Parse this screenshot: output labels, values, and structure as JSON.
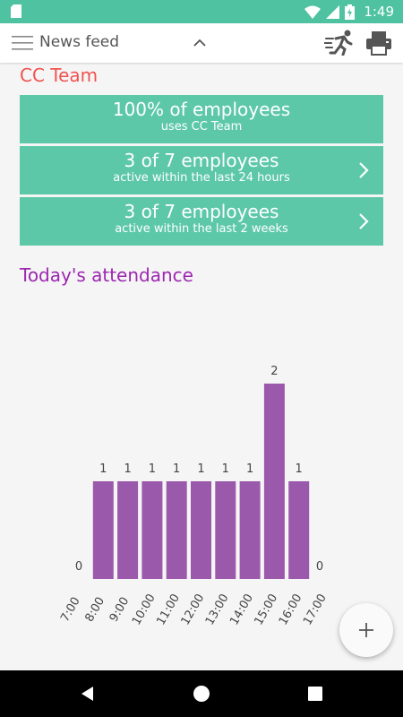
{
  "status_bar": {
    "time": "1:49",
    "battery_icon": "battery-charging-icon",
    "wifi_icon": "wifi-icon",
    "signal_icon": "signal-icon"
  },
  "app_bar": {
    "title": "News feed",
    "menu_icon": "menu-icon",
    "chevron_icon": "chevron-up-icon",
    "runner_icon": "running-person-icon",
    "print_icon": "printer-icon"
  },
  "cc_team": {
    "title": "CC Team",
    "cards": [
      {
        "big": "100% of employees",
        "small": "uses CC Team"
      },
      {
        "big": "3 of 7 employees",
        "small": "active within the last 24 hours"
      },
      {
        "big": "3 of 7 employees",
        "small": "active within the last 2 weeks"
      }
    ],
    "card_color": "#5dc8a8",
    "title_color": "#ef5350"
  },
  "attendance": {
    "title": "Today's attendance",
    "title_color": "#9c27b0"
  },
  "chart_data": {
    "type": "bar",
    "categories": [
      "7:00",
      "8:00",
      "9:00",
      "10:00",
      "11:00",
      "12:00",
      "13:00",
      "14:00",
      "15:00",
      "16:00",
      "17:00"
    ],
    "values": [
      0,
      1,
      1,
      1,
      1,
      1,
      1,
      1,
      2,
      1,
      0
    ],
    "data_labels": [
      "0",
      "1",
      "1",
      "1",
      "1",
      "1",
      "1",
      "1",
      "2",
      "1",
      "0"
    ],
    "ylim": [
      0,
      2
    ],
    "bar_color": "#9b59ab",
    "grid": false
  },
  "fab": {
    "icon": "plus-icon"
  }
}
